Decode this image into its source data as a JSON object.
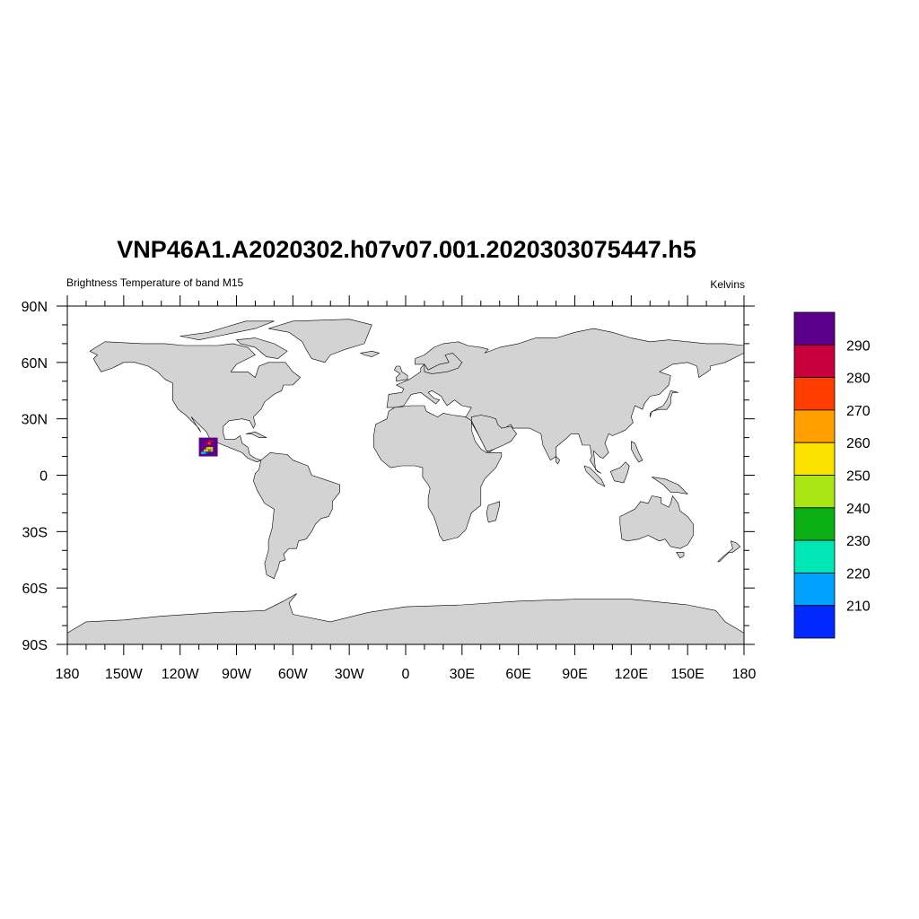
{
  "title": "VNP46A1.A2020302.h07v07.001.2020303075447.h5",
  "left_string": "Brightness Temperature of band M15",
  "right_string": "Kelvins",
  "colors": {
    "land": "#d3d3d3",
    "coastline": "#000000",
    "ocean": "#ffffff"
  },
  "map": {
    "projection": "cylindrical-equidistant",
    "lon_range": [
      -180,
      180
    ],
    "lat_range": [
      -90,
      90
    ],
    "x_ticks": [
      {
        "value": -180,
        "label": "180"
      },
      {
        "value": -150,
        "label": "150W"
      },
      {
        "value": -120,
        "label": "120W"
      },
      {
        "value": -90,
        "label": "90W"
      },
      {
        "value": -60,
        "label": "60W"
      },
      {
        "value": -30,
        "label": "30W"
      },
      {
        "value": 0,
        "label": "0"
      },
      {
        "value": 30,
        "label": "30E"
      },
      {
        "value": 60,
        "label": "60E"
      },
      {
        "value": 90,
        "label": "90E"
      },
      {
        "value": 120,
        "label": "120E"
      },
      {
        "value": 150,
        "label": "150E"
      },
      {
        "value": 180,
        "label": "180"
      }
    ],
    "y_ticks": [
      {
        "value": 90,
        "label": "90N"
      },
      {
        "value": 60,
        "label": "60N"
      },
      {
        "value": 30,
        "label": "30N"
      },
      {
        "value": 0,
        "label": "0"
      },
      {
        "value": -30,
        "label": "30S"
      },
      {
        "value": -60,
        "label": "60S"
      },
      {
        "value": -90,
        "label": "90S"
      }
    ],
    "data_tile": {
      "lon_range": [
        -110,
        -100
      ],
      "lat_range": [
        10,
        20
      ],
      "description_colors": [
        "#5a008c",
        "#c8003c",
        "#ff3c00",
        "#ffa000",
        "#fae100",
        "#aae614",
        "#0aaf14",
        "#00e6b4",
        "#00a0ff",
        "#0028ff"
      ]
    }
  },
  "colorbar": {
    "levels": [
      {
        "color": "#5a008c",
        "label": "290"
      },
      {
        "color": "#c8003c",
        "label": "280"
      },
      {
        "color": "#ff3c00",
        "label": "270"
      },
      {
        "color": "#ffa000",
        "label": "260"
      },
      {
        "color": "#fae100",
        "label": "250"
      },
      {
        "color": "#aae614",
        "label": "240"
      },
      {
        "color": "#0aaf14",
        "label": "230"
      },
      {
        "color": "#00e6b4",
        "label": "220"
      },
      {
        "color": "#00a0ff",
        "label": "210"
      },
      {
        "color": "#0028ff",
        "label": ""
      }
    ]
  }
}
